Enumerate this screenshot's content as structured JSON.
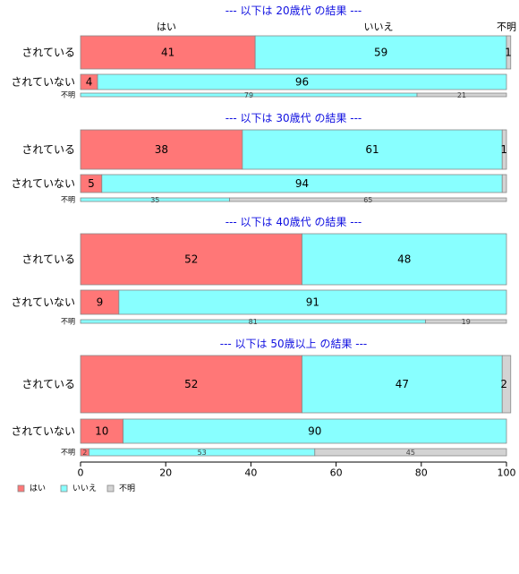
{
  "chart_data": {
    "type": "bar",
    "orientation": "horizontal",
    "stacked": true,
    "xlim": [
      0,
      100
    ],
    "x_ticks": [
      "0",
      "20",
      "40",
      "60",
      "80",
      "100"
    ],
    "column_headers": [
      "はい",
      "いいえ",
      "不明"
    ],
    "legend": {
      "placement": "bottom-left",
      "entries": [
        {
          "label": "はい",
          "color": "#ff7777"
        },
        {
          "label": "いいえ",
          "color": "#88ffff"
        },
        {
          "label": "不明",
          "color": "#d3d3d3"
        }
      ]
    },
    "panels": [
      {
        "title": "--- 以下は 20歳代 の結果 ---",
        "rows": [
          {
            "label": "されている",
            "values": [
              41,
              59,
              1
            ],
            "value_labels": [
              "41",
              "59",
              "1"
            ]
          },
          {
            "label": "されていない",
            "values": [
              4,
              96,
              0
            ],
            "value_labels": [
              "4",
              "96",
              ""
            ]
          },
          {
            "label": "不明",
            "values": [
              0,
              79,
              21
            ],
            "value_labels": [
              "",
              "79",
              "21"
            ]
          }
        ]
      },
      {
        "title": "--- 以下は 30歳代 の結果 ---",
        "rows": [
          {
            "label": "されている",
            "values": [
              38,
              61,
              1
            ],
            "value_labels": [
              "38",
              "61",
              "1"
            ]
          },
          {
            "label": "されていない",
            "values": [
              5,
              94,
              1
            ],
            "value_labels": [
              "5",
              "94",
              ""
            ]
          },
          {
            "label": "不明",
            "values": [
              0,
              35,
              65
            ],
            "value_labels": [
              "",
              "35",
              "65"
            ]
          }
        ]
      },
      {
        "title": "--- 以下は 40歳代 の結果 ---",
        "rows": [
          {
            "label": "されている",
            "values": [
              52,
              48,
              0
            ],
            "value_labels": [
              "52",
              "48",
              ""
            ]
          },
          {
            "label": "されていない",
            "values": [
              9,
              91,
              0
            ],
            "value_labels": [
              "9",
              "91",
              ""
            ]
          },
          {
            "label": "不明",
            "values": [
              0,
              81,
              19
            ],
            "value_labels": [
              "",
              "81",
              "19"
            ]
          }
        ]
      },
      {
        "title": "--- 以下は 50歳以上 の結果 ---",
        "rows": [
          {
            "label": "されている",
            "values": [
              52,
              47,
              2
            ],
            "value_labels": [
              "52",
              "47",
              "2"
            ]
          },
          {
            "label": "されていない",
            "values": [
              10,
              90,
              0
            ],
            "value_labels": [
              "10",
              "90",
              ""
            ]
          },
          {
            "label": "不明",
            "values": [
              2,
              53,
              45
            ],
            "value_labels": [
              "2",
              "53",
              "45"
            ]
          }
        ]
      }
    ]
  }
}
